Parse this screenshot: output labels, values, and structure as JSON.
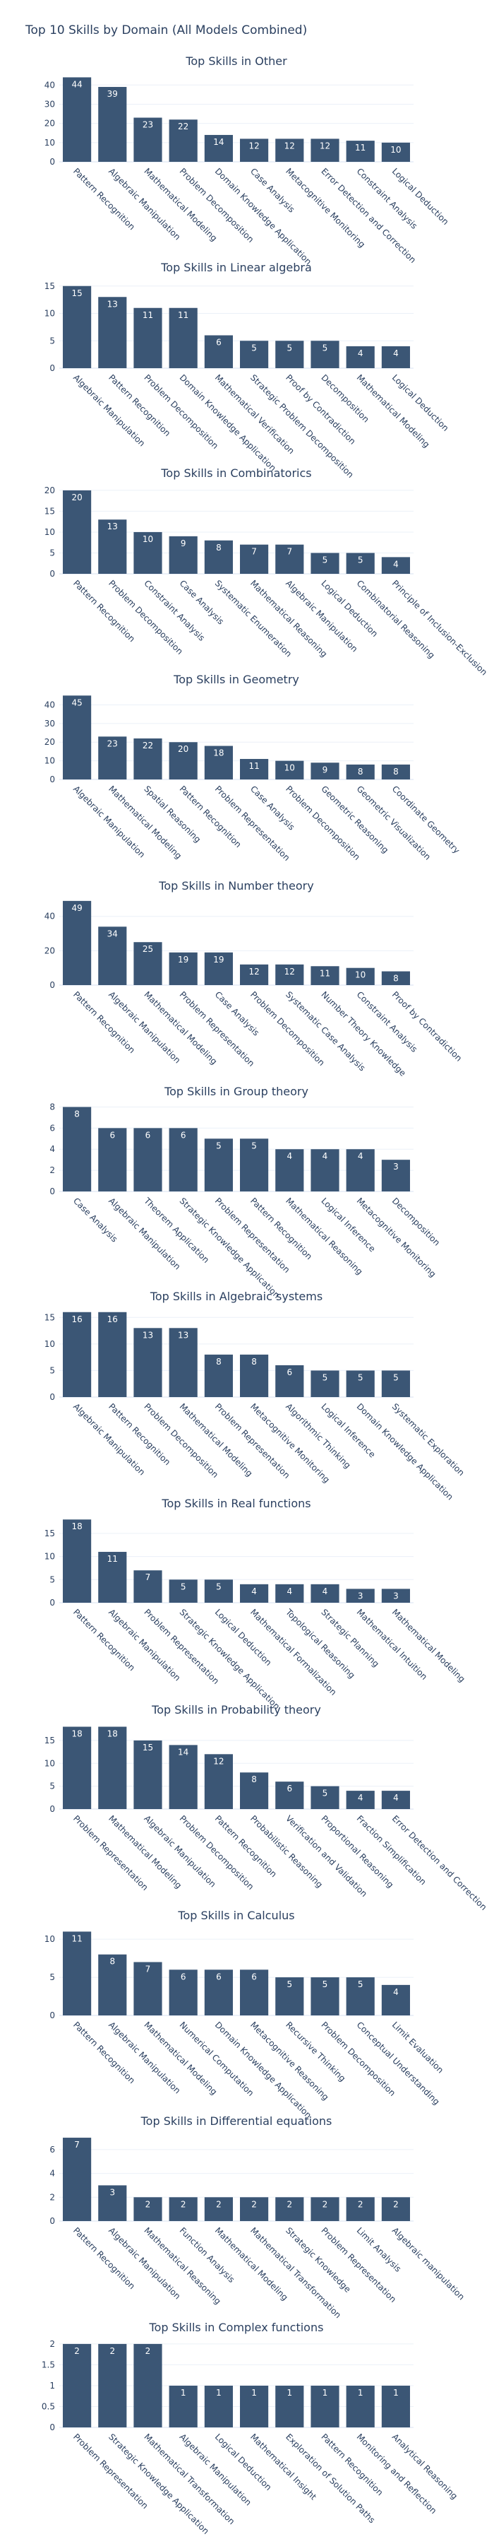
{
  "title": "Top 10 Skills by Domain (All Models Combined)",
  "colors": {
    "bar": "#3b5675",
    "text": "#2a3f5f",
    "grid": "#ebf0f8",
    "label": "#ffffff"
  },
  "chart_data": [
    {
      "type": "bar",
      "title": "Top Skills in Other",
      "ylim": [
        0,
        46
      ],
      "yticks": [
        0,
        10,
        20,
        30,
        40
      ],
      "categories": [
        "Pattern Recognition",
        "Algebraic Manipulation",
        "Mathematical Modeling",
        "Problem Decomposition",
        "Domain Knowledge Application",
        "Case Analysis",
        "Metacognitive Monitoring",
        "Error Detection and Correction",
        "Constraint Analysis",
        "Logical Deduction"
      ],
      "values": [
        44,
        39,
        23,
        22,
        14,
        12,
        12,
        12,
        11,
        10
      ]
    },
    {
      "type": "bar",
      "title": "Top Skills in Linear algebra",
      "ylim": [
        0,
        16
      ],
      "yticks": [
        0,
        5,
        10,
        15
      ],
      "categories": [
        "Algebraic Manipulation",
        "Pattern Recognition",
        "Problem Decomposition",
        "Domain Knowledge Application",
        "Mathematical Verification",
        "Strategic Problem Decomposition",
        "Proof by Contradiction",
        "Decomposition",
        "Mathematical Modeling",
        "Logical Deduction"
      ],
      "values": [
        15,
        13,
        11,
        11,
        6,
        5,
        5,
        5,
        4,
        4
      ]
    },
    {
      "type": "bar",
      "title": "Top Skills in Combinatorics",
      "ylim": [
        0,
        21
      ],
      "yticks": [
        0,
        5,
        10,
        15,
        20
      ],
      "categories": [
        "Pattern Recognition",
        "Problem Decomposition",
        "Constraint Analysis",
        "Case Analysis",
        "Systematic Enumeration",
        "Mathematical Reasoning",
        "Algebraic Manipulation",
        "Logical Deduction",
        "Combinatorial Reasoning",
        "Principle of Inclusion-Exclusion"
      ],
      "values": [
        20,
        13,
        10,
        9,
        8,
        7,
        7,
        5,
        5,
        4
      ]
    },
    {
      "type": "bar",
      "title": "Top Skills in Geometry",
      "ylim": [
        0,
        47
      ],
      "yticks": [
        0,
        10,
        20,
        30,
        40
      ],
      "categories": [
        "Algebraic Manipulation",
        "Mathematical Modeling",
        "Spatial Reasoning",
        "Pattern Recognition",
        "Problem Representation",
        "Case Analysis",
        "Problem Decomposition",
        "Geometric Reasoning",
        "Geometric Visualization",
        "Coordinate Geometry"
      ],
      "values": [
        45,
        23,
        22,
        20,
        18,
        11,
        10,
        9,
        8,
        8
      ]
    },
    {
      "type": "bar",
      "title": "Top Skills in Number theory",
      "ylim": [
        0,
        51
      ],
      "yticks": [
        0,
        20,
        40
      ],
      "categories": [
        "Pattern Recognition",
        "Algebraic Manipulation",
        "Mathematical Modeling",
        "Problem Representation",
        "Case Analysis",
        "Problem Decomposition",
        "Systematic Case Analysis",
        "Number Theory Knowledge",
        "Constraint Analysis",
        "Proof by Contradiction"
      ],
      "values": [
        49,
        34,
        25,
        19,
        19,
        12,
        12,
        11,
        10,
        8
      ]
    },
    {
      "type": "bar",
      "title": "Top Skills in Group theory",
      "ylim": [
        0,
        8.3
      ],
      "yticks": [
        0,
        2,
        4,
        6,
        8
      ],
      "categories": [
        "Case Analysis",
        "Algebraic Manipulation",
        "Theorem Application",
        "Strategic Knowledge Application",
        "Problem Representation",
        "Pattern Recognition",
        "Mathematical Reasoning",
        "Logical Inference",
        "Metacognitive Monitoring",
        "Decomposition"
      ],
      "values": [
        8,
        6,
        6,
        6,
        5,
        5,
        4,
        4,
        4,
        3
      ]
    },
    {
      "type": "bar",
      "title": "Top Skills in Algebraic systems",
      "ylim": [
        0,
        16.5
      ],
      "yticks": [
        0,
        5,
        10,
        15
      ],
      "categories": [
        "Algebraic Manipulation",
        "Pattern Recognition",
        "Problem Decomposition",
        "Mathematical Modeling",
        "Problem Representation",
        "Metacognitive Monitoring",
        "Algorithmic Thinking",
        "Logical Inference",
        "Domain Knowledge Application",
        "Systematic Exploration"
      ],
      "values": [
        16,
        16,
        13,
        13,
        8,
        8,
        6,
        5,
        5,
        5
      ]
    },
    {
      "type": "bar",
      "title": "Top Skills in Real functions",
      "ylim": [
        0,
        18.8
      ],
      "yticks": [
        0,
        5,
        10,
        15
      ],
      "categories": [
        "Pattern Recognition",
        "Algebraic Manipulation",
        "Problem Representation",
        "Strategic Knowledge Application",
        "Logical Deduction",
        "Mathematical Formalization",
        "Topological Reasoning",
        "Strategic Planning",
        "Mathematical Intuition",
        "Mathematical Modeling"
      ],
      "values": [
        18,
        11,
        7,
        5,
        5,
        4,
        4,
        4,
        3,
        3
      ]
    },
    {
      "type": "bar",
      "title": "Top Skills in Probability theory",
      "ylim": [
        0,
        19
      ],
      "yticks": [
        0,
        5,
        10,
        15
      ],
      "categories": [
        "Problem Representation",
        "Mathematical Modeling",
        "Algebraic Manipulation",
        "Problem Decomposition",
        "Pattern Recognition",
        "Probabilistic Reasoning",
        "Verification and Validation",
        "Proportional Reasoning",
        "Fraction Simplification",
        "Error Detection and Correction"
      ],
      "values": [
        18,
        18,
        15,
        14,
        12,
        8,
        6,
        5,
        4,
        4
      ]
    },
    {
      "type": "bar",
      "title": "Top Skills in Calculus",
      "ylim": [
        0,
        11.5
      ],
      "yticks": [
        0,
        5,
        10
      ],
      "categories": [
        "Pattern Recognition",
        "Algebraic Manipulation",
        "Mathematical Modeling",
        "Numerical Computation",
        "Domain Knowledge Application",
        "Metacognitive Reasoning",
        "Recursive Thinking",
        "Problem Decomposition",
        "Conceptual Understanding",
        "Limit Evaluation"
      ],
      "values": [
        11,
        8,
        7,
        6,
        6,
        6,
        5,
        5,
        5,
        4
      ]
    },
    {
      "type": "bar",
      "title": "Top Skills in Differential equations",
      "ylim": [
        0,
        7.3
      ],
      "yticks": [
        0,
        2,
        4,
        6
      ],
      "categories": [
        "Pattern Recognition",
        "Algebraic Manipulation",
        "Mathematical Reasoning",
        "Function Analysis",
        "Mathematical Modeling",
        "Mathematical Transformation",
        "Strategic Knowledge",
        "Problem Representation",
        "Limit Analysis",
        "Algebraic manipulation"
      ],
      "values": [
        7,
        3,
        2,
        2,
        2,
        2,
        2,
        2,
        2,
        2
      ]
    },
    {
      "type": "bar",
      "title": "Top Skills in Complex functions",
      "ylim": [
        0,
        2.1
      ],
      "yticks": [
        0,
        0.5,
        1,
        1.5,
        2
      ],
      "categories": [
        "Problem Representation",
        "Strategic Knowledge Application",
        "Mathematical Transformation",
        "Algebraic Manipulation",
        "Logical Deduction",
        "Mathematical Insight",
        "Exploration of Solution Paths",
        "Pattern Recognition",
        "Monitoring and Reflection",
        "Analytical Reasoning"
      ],
      "values": [
        2,
        2,
        2,
        1,
        1,
        1,
        1,
        1,
        1,
        1
      ]
    }
  ]
}
